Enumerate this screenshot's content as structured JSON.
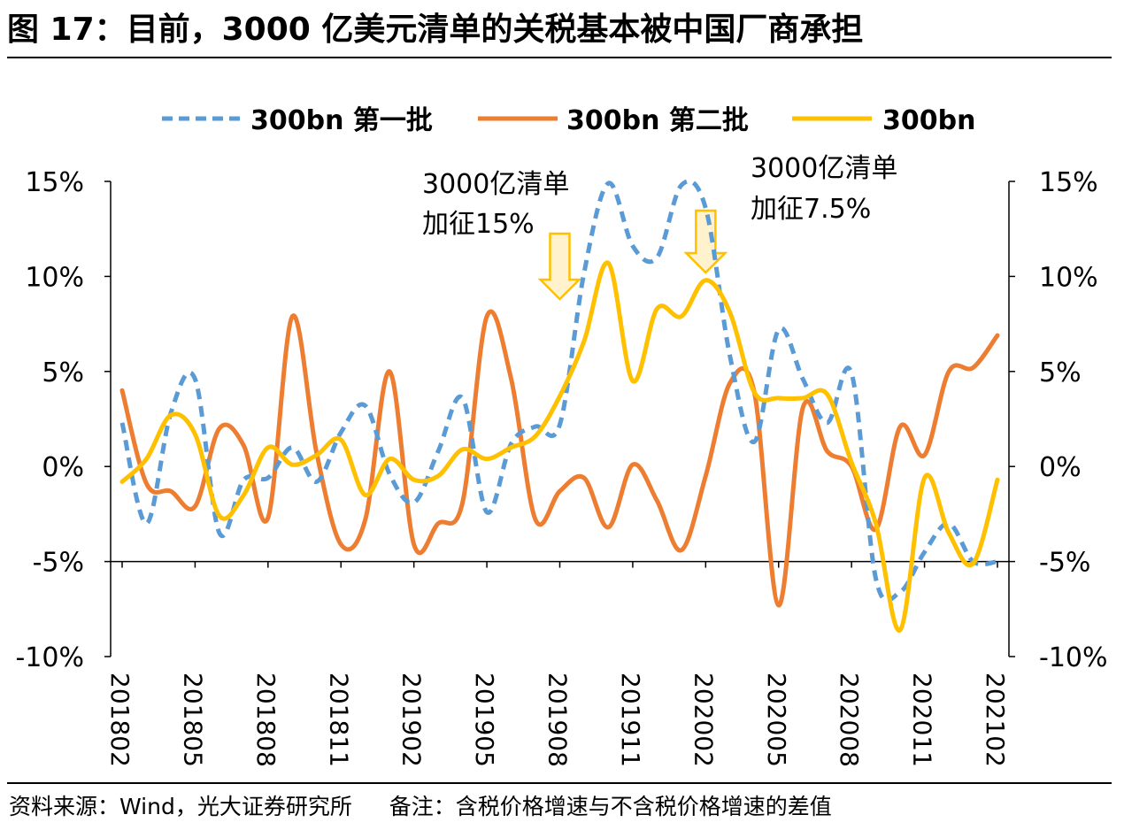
{
  "title": "图 17：目前，3000 亿美元清单的关税基本被中国厂商承担",
  "footer": {
    "source": "资料来源：Wind，光大证券研究所",
    "note": "备注：含税价格增速与不含税价格增速的差值"
  },
  "colors": {
    "series1": "#5B9BD5",
    "series2": "#ED7D31",
    "series3": "#FFC000",
    "arrow_fill": "#FFF2CC",
    "arrow_stroke": "#FFC000"
  },
  "chart_data": {
    "type": "line",
    "title": "",
    "xlabel": "",
    "ylabel": "",
    "ylim": [
      -10,
      15
    ],
    "y_ticks": [
      15,
      10,
      5,
      0,
      -5,
      -10
    ],
    "y_tick_labels": [
      "15%",
      "10%",
      "5%",
      "0%",
      "-5%",
      "-10%"
    ],
    "y_right_tick_labels": [
      "15%",
      "10%",
      "5%",
      "0%",
      "-5%",
      "-10%"
    ],
    "x_tick_labels": [
      "201802",
      "201805",
      "201808",
      "201811",
      "201902",
      "201905",
      "201908",
      "201911",
      "202002",
      "202005",
      "202008",
      "202011",
      "202102"
    ],
    "x": [
      "201802",
      "201803",
      "201804",
      "201805",
      "201806",
      "201807",
      "201808",
      "201809",
      "201810",
      "201811",
      "201812",
      "201901",
      "201902",
      "201903",
      "201904",
      "201905",
      "201906",
      "201907",
      "201908",
      "201909",
      "201910",
      "201911",
      "201912",
      "202001",
      "202002",
      "202003",
      "202004",
      "202005",
      "202006",
      "202007",
      "202008",
      "202009",
      "202010",
      "202011",
      "202012",
      "202101",
      "202102"
    ],
    "series": [
      {
        "name": "300bn 第一批",
        "style": "dashed",
        "values": [
          2.3,
          -3.0,
          2.8,
          4.6,
          -3.5,
          -0.7,
          -0.6,
          1.0,
          -0.8,
          1.8,
          3.2,
          -0.4,
          -1.9,
          0.8,
          3.6,
          -2.4,
          1.2,
          2.1,
          2.2,
          10.2,
          14.9,
          11.6,
          11.0,
          14.8,
          13.6,
          5.8,
          1.3,
          7.2,
          4.6,
          2.3,
          4.9,
          -5.9,
          -6.6,
          -4.5,
          -3.0,
          -5.0,
          -5.0
        ]
      },
      {
        "name": "300bn 第二批",
        "style": "solid",
        "values": [
          4.0,
          -0.9,
          -1.3,
          -2.1,
          2.0,
          1.1,
          -2.7,
          7.9,
          0.7,
          -4.1,
          -2.8,
          5.0,
          -4.1,
          -3.0,
          -1.9,
          7.9,
          4.6,
          -2.8,
          -1.3,
          -0.6,
          -3.2,
          0.1,
          -1.8,
          -4.4,
          -0.5,
          4.4,
          3.9,
          -7.3,
          3.1,
          0.8,
          0.0,
          -3.3,
          2.1,
          0.6,
          5.0,
          5.2,
          6.9
        ]
      },
      {
        "name": "300bn",
        "style": "solid",
        "values": [
          -0.8,
          0.4,
          2.7,
          1.7,
          -2.6,
          -1.5,
          1.0,
          0.1,
          0.6,
          1.4,
          -1.5,
          0.4,
          -0.7,
          -0.5,
          0.9,
          0.4,
          1.0,
          1.6,
          3.7,
          6.6,
          10.7,
          4.5,
          8.3,
          7.9,
          9.8,
          8.1,
          3.9,
          3.6,
          3.6,
          3.8,
          0.2,
          -3.0,
          -8.6,
          -0.6,
          -3.5,
          -5.1,
          -0.7
        ]
      }
    ],
    "legend": "top",
    "annotations": [
      {
        "text_line1": "3000亿清单",
        "text_line2": "加征15%",
        "at": "201908"
      },
      {
        "text_line1": "3000亿清单",
        "text_line2": "加征7.5%",
        "at": "202002"
      }
    ]
  }
}
